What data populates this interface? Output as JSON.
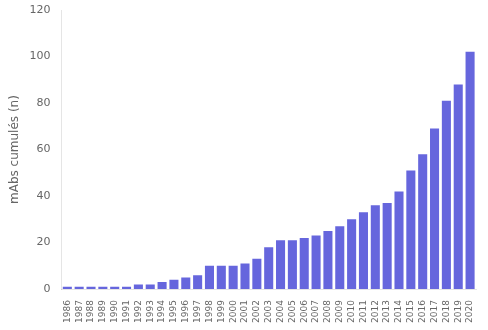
{
  "chart_data": {
    "type": "bar",
    "categories": [
      "1986",
      "1987",
      "1988",
      "1989",
      "1990",
      "1991",
      "1992",
      "1993",
      "1994",
      "1995",
      "1996",
      "1997",
      "1998",
      "1999",
      "2000",
      "2001",
      "2002",
      "2003",
      "2004",
      "2005",
      "2006",
      "2007",
      "2008",
      "2009",
      "2010",
      "2011",
      "2012",
      "2013",
      "2014",
      "2015",
      "2016",
      "2017",
      "2018",
      "2019",
      "2020"
    ],
    "values": [
      1,
      1,
      1,
      1,
      1,
      1,
      2,
      2,
      3,
      4,
      5,
      6,
      10,
      10,
      10,
      11,
      13,
      18,
      21,
      21,
      22,
      23,
      25,
      27,
      30,
      33,
      36,
      37,
      42,
      51,
      58,
      69,
      81,
      88,
      102
    ],
    "color": "#6666dd",
    "ylabel": "mAbs cumulés (n)",
    "ylim": [
      0,
      120
    ],
    "yticks": [
      0,
      20,
      40,
      60,
      80,
      100,
      120
    ],
    "grid": false
  }
}
